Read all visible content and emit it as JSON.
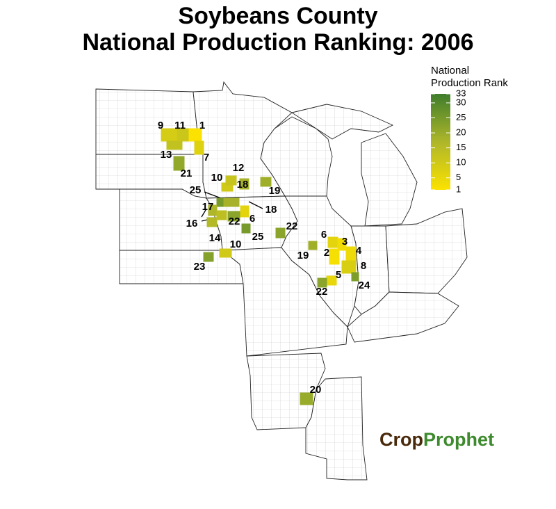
{
  "title": [
    "Soybeans County",
    "National Production Ranking: 2006"
  ],
  "legend": {
    "title": [
      "National",
      "Production Rank"
    ],
    "range": [
      1,
      33
    ],
    "ticks": [
      1,
      5,
      10,
      15,
      20,
      25,
      30,
      33
    ],
    "colors": [
      "#fbe200",
      "#aeb62a",
      "#3f7d2c"
    ]
  },
  "counties": [
    9,
    11,
    1,
    13,
    7,
    21,
    10,
    12,
    18,
    19,
    25,
    17,
    16,
    18,
    22,
    6,
    25,
    22,
    14,
    10,
    23,
    6,
    19,
    3,
    2,
    4,
    8,
    5,
    24,
    22,
    20
  ],
  "logo": [
    "Crop",
    "Prophet"
  ]
}
